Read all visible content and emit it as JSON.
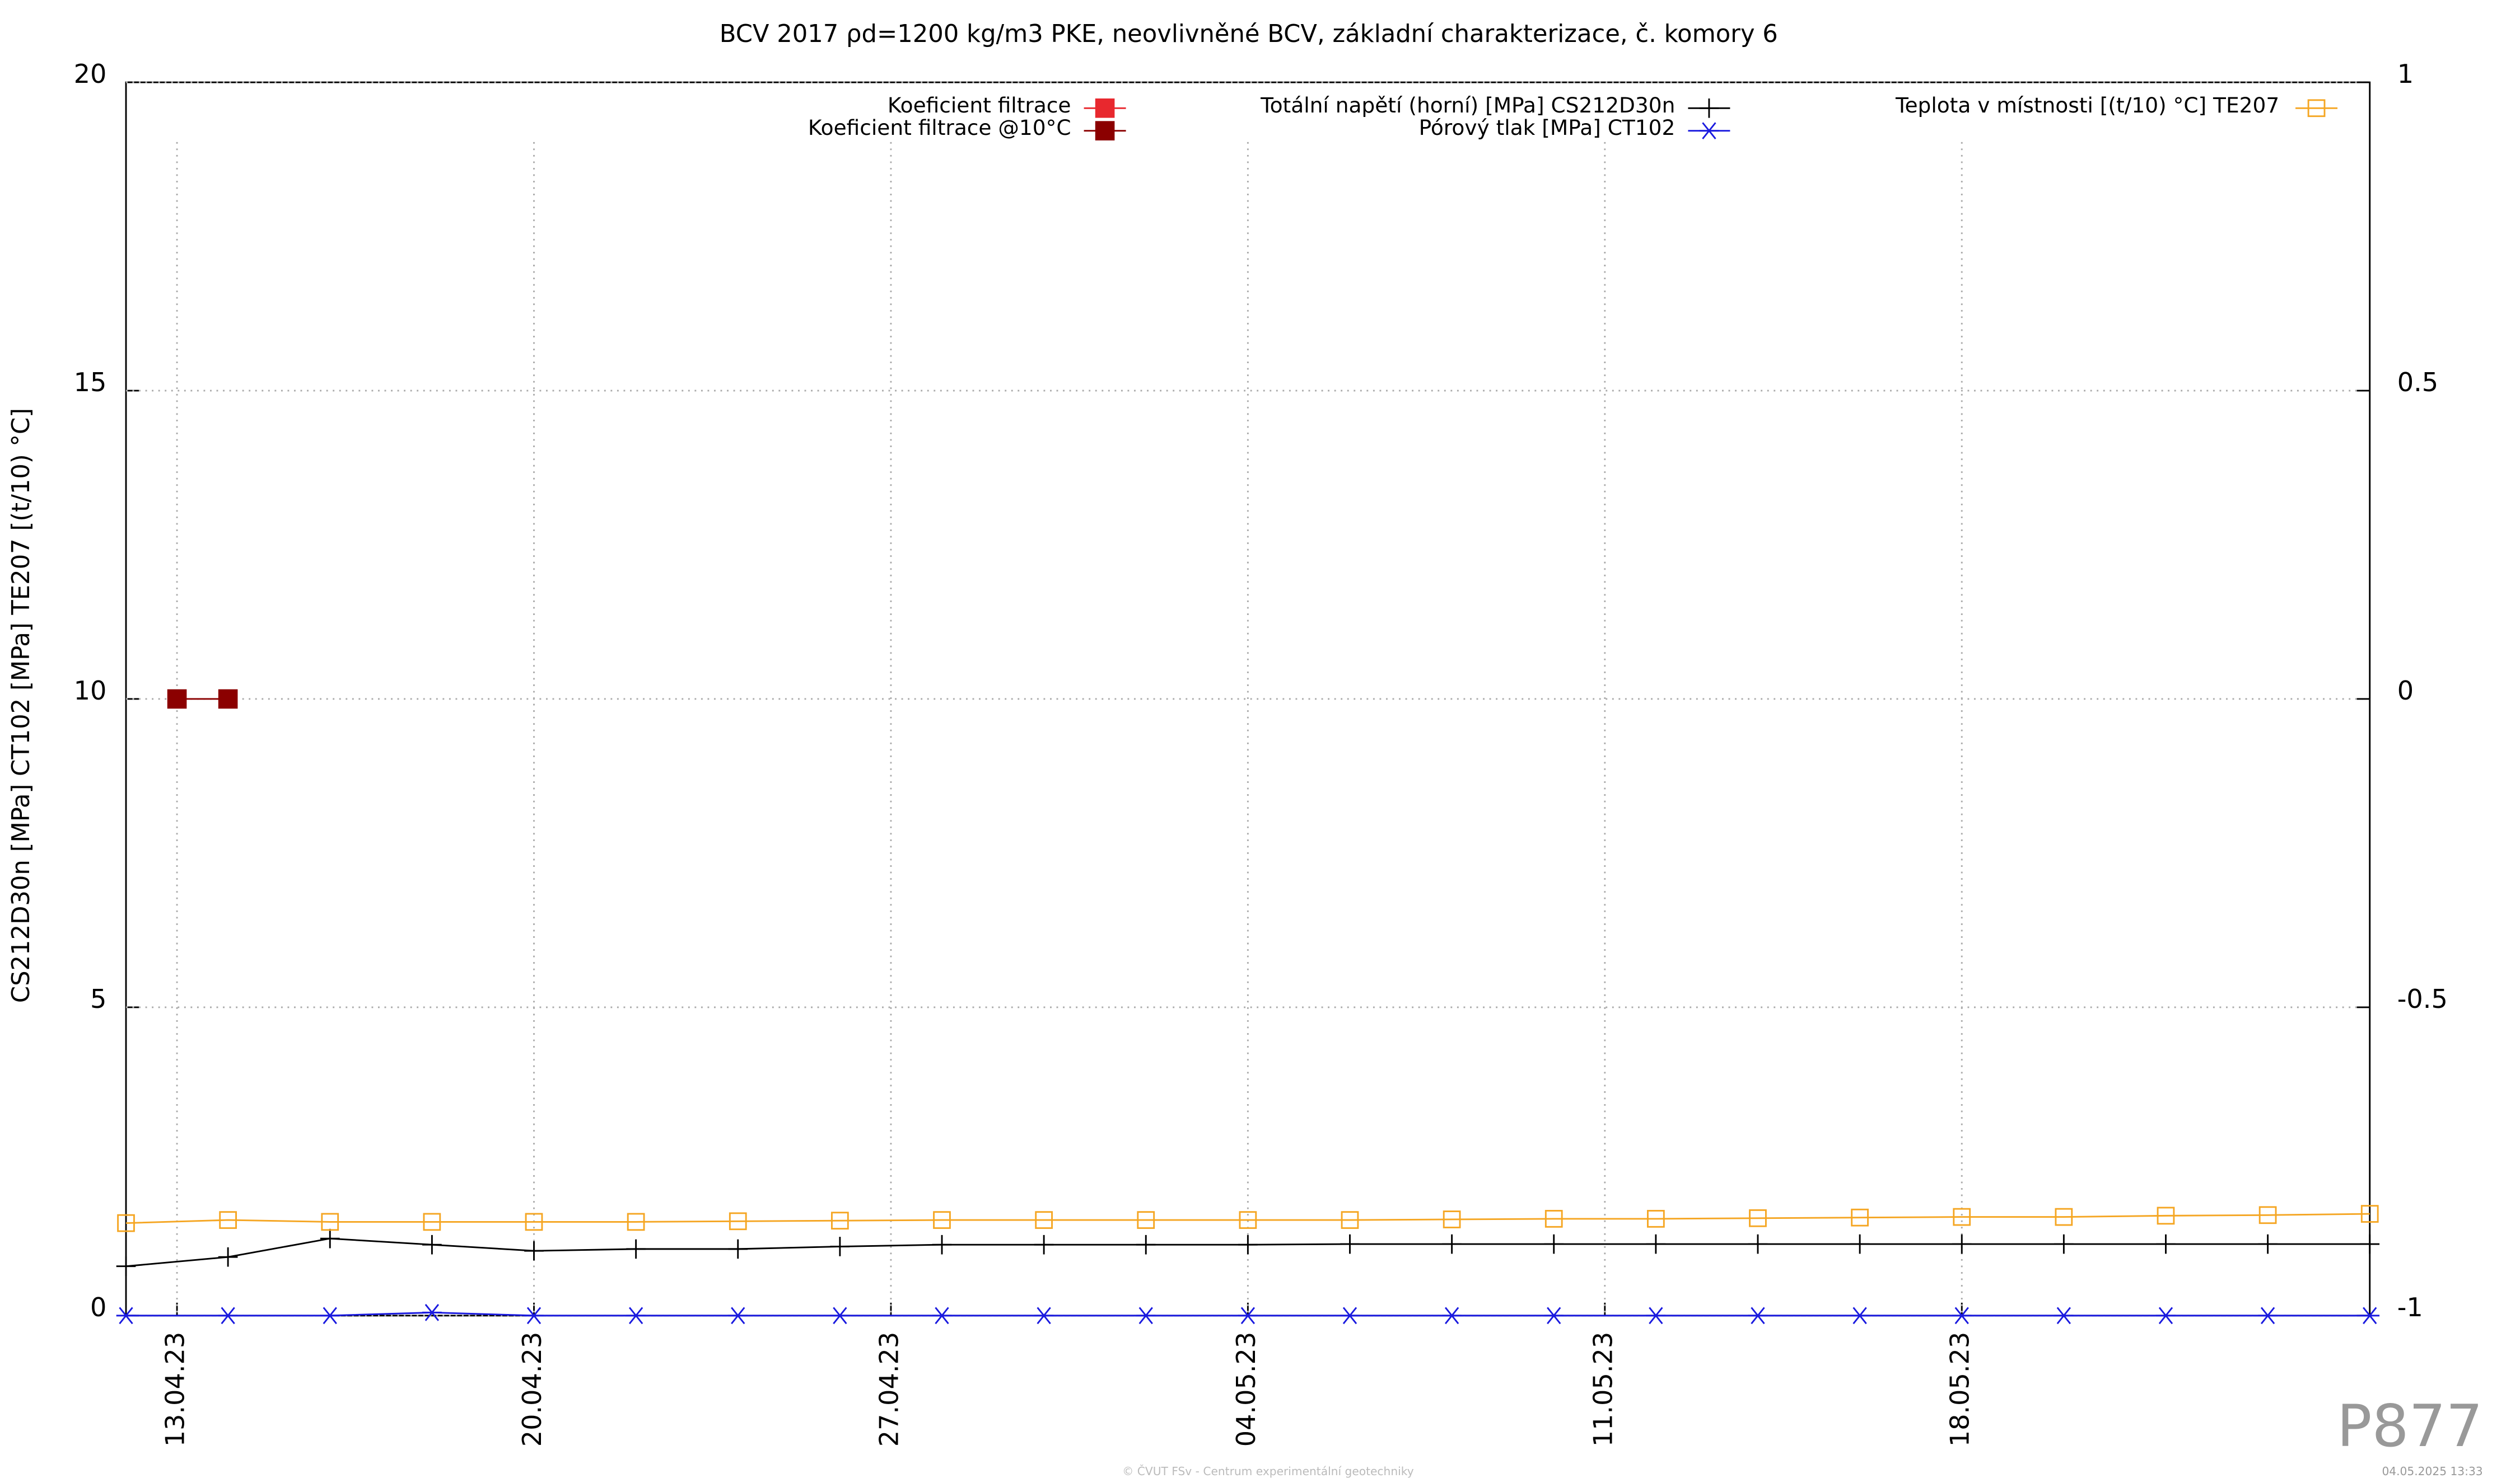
{
  "chart_data": {
    "type": "line",
    "title": "BCV 2017 ρd=1200 kg/m3 PKE, neovlivněné BCV, základní charakterizace, č. komory 6",
    "ylabel": "CS212D30n [MPa] CT102 [MPa] TE207 [(t/10) °C]",
    "x": [
      "2023-04-12",
      "2023-04-14",
      "2023-04-16",
      "2023-04-18",
      "2023-04-20",
      "2023-04-22",
      "2023-04-24",
      "2023-04-26",
      "2023-04-28",
      "2023-04-30",
      "2023-05-02",
      "2023-05-04",
      "2023-05-06",
      "2023-05-08",
      "2023-05-10",
      "2023-05-12",
      "2023-05-14",
      "2023-05-16",
      "2023-05-18",
      "2023-05-20",
      "2023-05-22",
      "2023-05-24",
      "2023-05-26"
    ],
    "xlim": [
      "2023-04-12",
      "2023-05-26"
    ],
    "xticks": [
      {
        "value": "2023-04-13",
        "label": "13.04.23"
      },
      {
        "value": "2023-04-20",
        "label": "20.04.23"
      },
      {
        "value": "2023-04-27",
        "label": "27.04.23"
      },
      {
        "value": "2023-05-04",
        "label": "04.05.23"
      },
      {
        "value": "2023-05-11",
        "label": "11.05.23"
      },
      {
        "value": "2023-05-18",
        "label": "18.05.23"
      }
    ],
    "ylim": [
      0,
      20
    ],
    "yticks": [
      0,
      5,
      10,
      15,
      20
    ],
    "y2lim": [
      -1,
      1
    ],
    "y2ticks": [
      -1,
      -0.5,
      0,
      0.5,
      1
    ],
    "grid": true,
    "series": [
      {
        "name": "Koeficient filtrace",
        "color": "#e8282e",
        "marker": "filled-square",
        "axis": "y2",
        "x": [],
        "values": []
      },
      {
        "name": "Koeficient filtrace @10°C",
        "color": "#8b0000",
        "marker": "filled-square",
        "axis": "y2",
        "x": [
          "2023-04-13",
          "2023-04-14"
        ],
        "values": [
          0,
          0
        ]
      },
      {
        "name": "Totální napětí (horní) [MPa] CS212D30n",
        "color": "#000000",
        "marker": "plus",
        "values": [
          0.8,
          0.95,
          1.25,
          1.15,
          1.05,
          1.08,
          1.08,
          1.12,
          1.15,
          1.15,
          1.15,
          1.15,
          1.16,
          1.16,
          1.16,
          1.16,
          1.16,
          1.16,
          1.16,
          1.16,
          1.16,
          1.16,
          1.16
        ]
      },
      {
        "name": "Pórový tlak [MPa] CT102",
        "color": "#1a1adf",
        "marker": "star",
        "values": [
          0,
          0,
          0,
          0.05,
          0,
          0,
          0,
          0,
          0,
          0,
          0,
          0,
          0,
          0,
          0,
          0,
          0,
          0,
          0,
          0,
          0,
          0,
          0
        ]
      },
      {
        "name": "Teplota v místnosti [(t/10) °C] TE207",
        "color": "#f5a623",
        "marker": "open-square",
        "values": [
          1.5,
          1.55,
          1.52,
          1.52,
          1.52,
          1.52,
          1.53,
          1.54,
          1.55,
          1.55,
          1.55,
          1.55,
          1.55,
          1.56,
          1.57,
          1.57,
          1.58,
          1.59,
          1.6,
          1.6,
          1.62,
          1.63,
          1.65
        ]
      }
    ],
    "watermark": "P877",
    "footer": "© ČVUT FSv - Centrum experimentální geotechniky",
    "timestamp": "04.05.2025 13:33"
  }
}
